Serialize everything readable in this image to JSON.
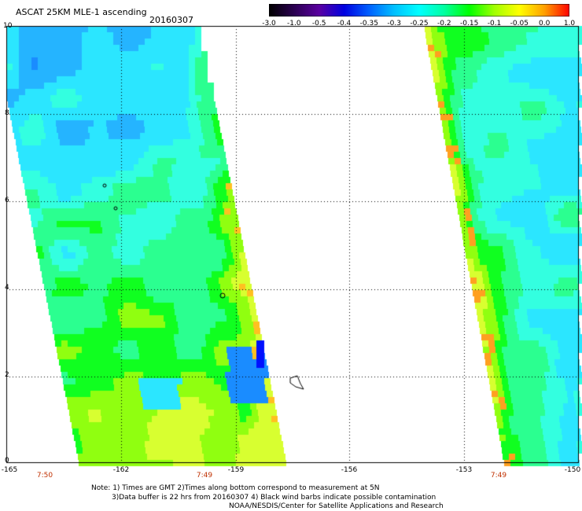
{
  "header": {
    "title": "ASCAT 25KM MLE-1 ascending",
    "date": "20160307"
  },
  "colorbar": {
    "labels": [
      "-3.0",
      "-1.0",
      "-0.5",
      "-0.4",
      "-0.35",
      "-0.3",
      "-0.25",
      "-0.2",
      "-0.15",
      "-0.1",
      "-0.05",
      "0.0",
      "1.0"
    ],
    "colors": [
      "#000000",
      "#2a0050",
      "#5a00a0",
      "#0000e0",
      "#0060ff",
      "#00c0ff",
      "#00ffff",
      "#00ffa0",
      "#00ff00",
      "#a0ff00",
      "#ffff00",
      "#ffa000",
      "#ff0000"
    ]
  },
  "axes": {
    "y_ticks": [
      "10",
      "8",
      "6",
      "4",
      "2",
      "0"
    ],
    "x_ticks": [
      "-165",
      "-162",
      "-159",
      "-156",
      "-153",
      "-150"
    ],
    "time_labels": [
      "7:50",
      "7:49",
      "7:49"
    ]
  },
  "notes": {
    "line1": "Note: 1) Times are GMT 2)Times along bottom correspond to measurement at 5N",
    "line2": "3)Data buffer is 22 hrs from 20160307 4) Black wind barbs indicate possible contamination",
    "line3": "NOAA/NESDIS/Center for Satellite Applications and Research"
  }
}
